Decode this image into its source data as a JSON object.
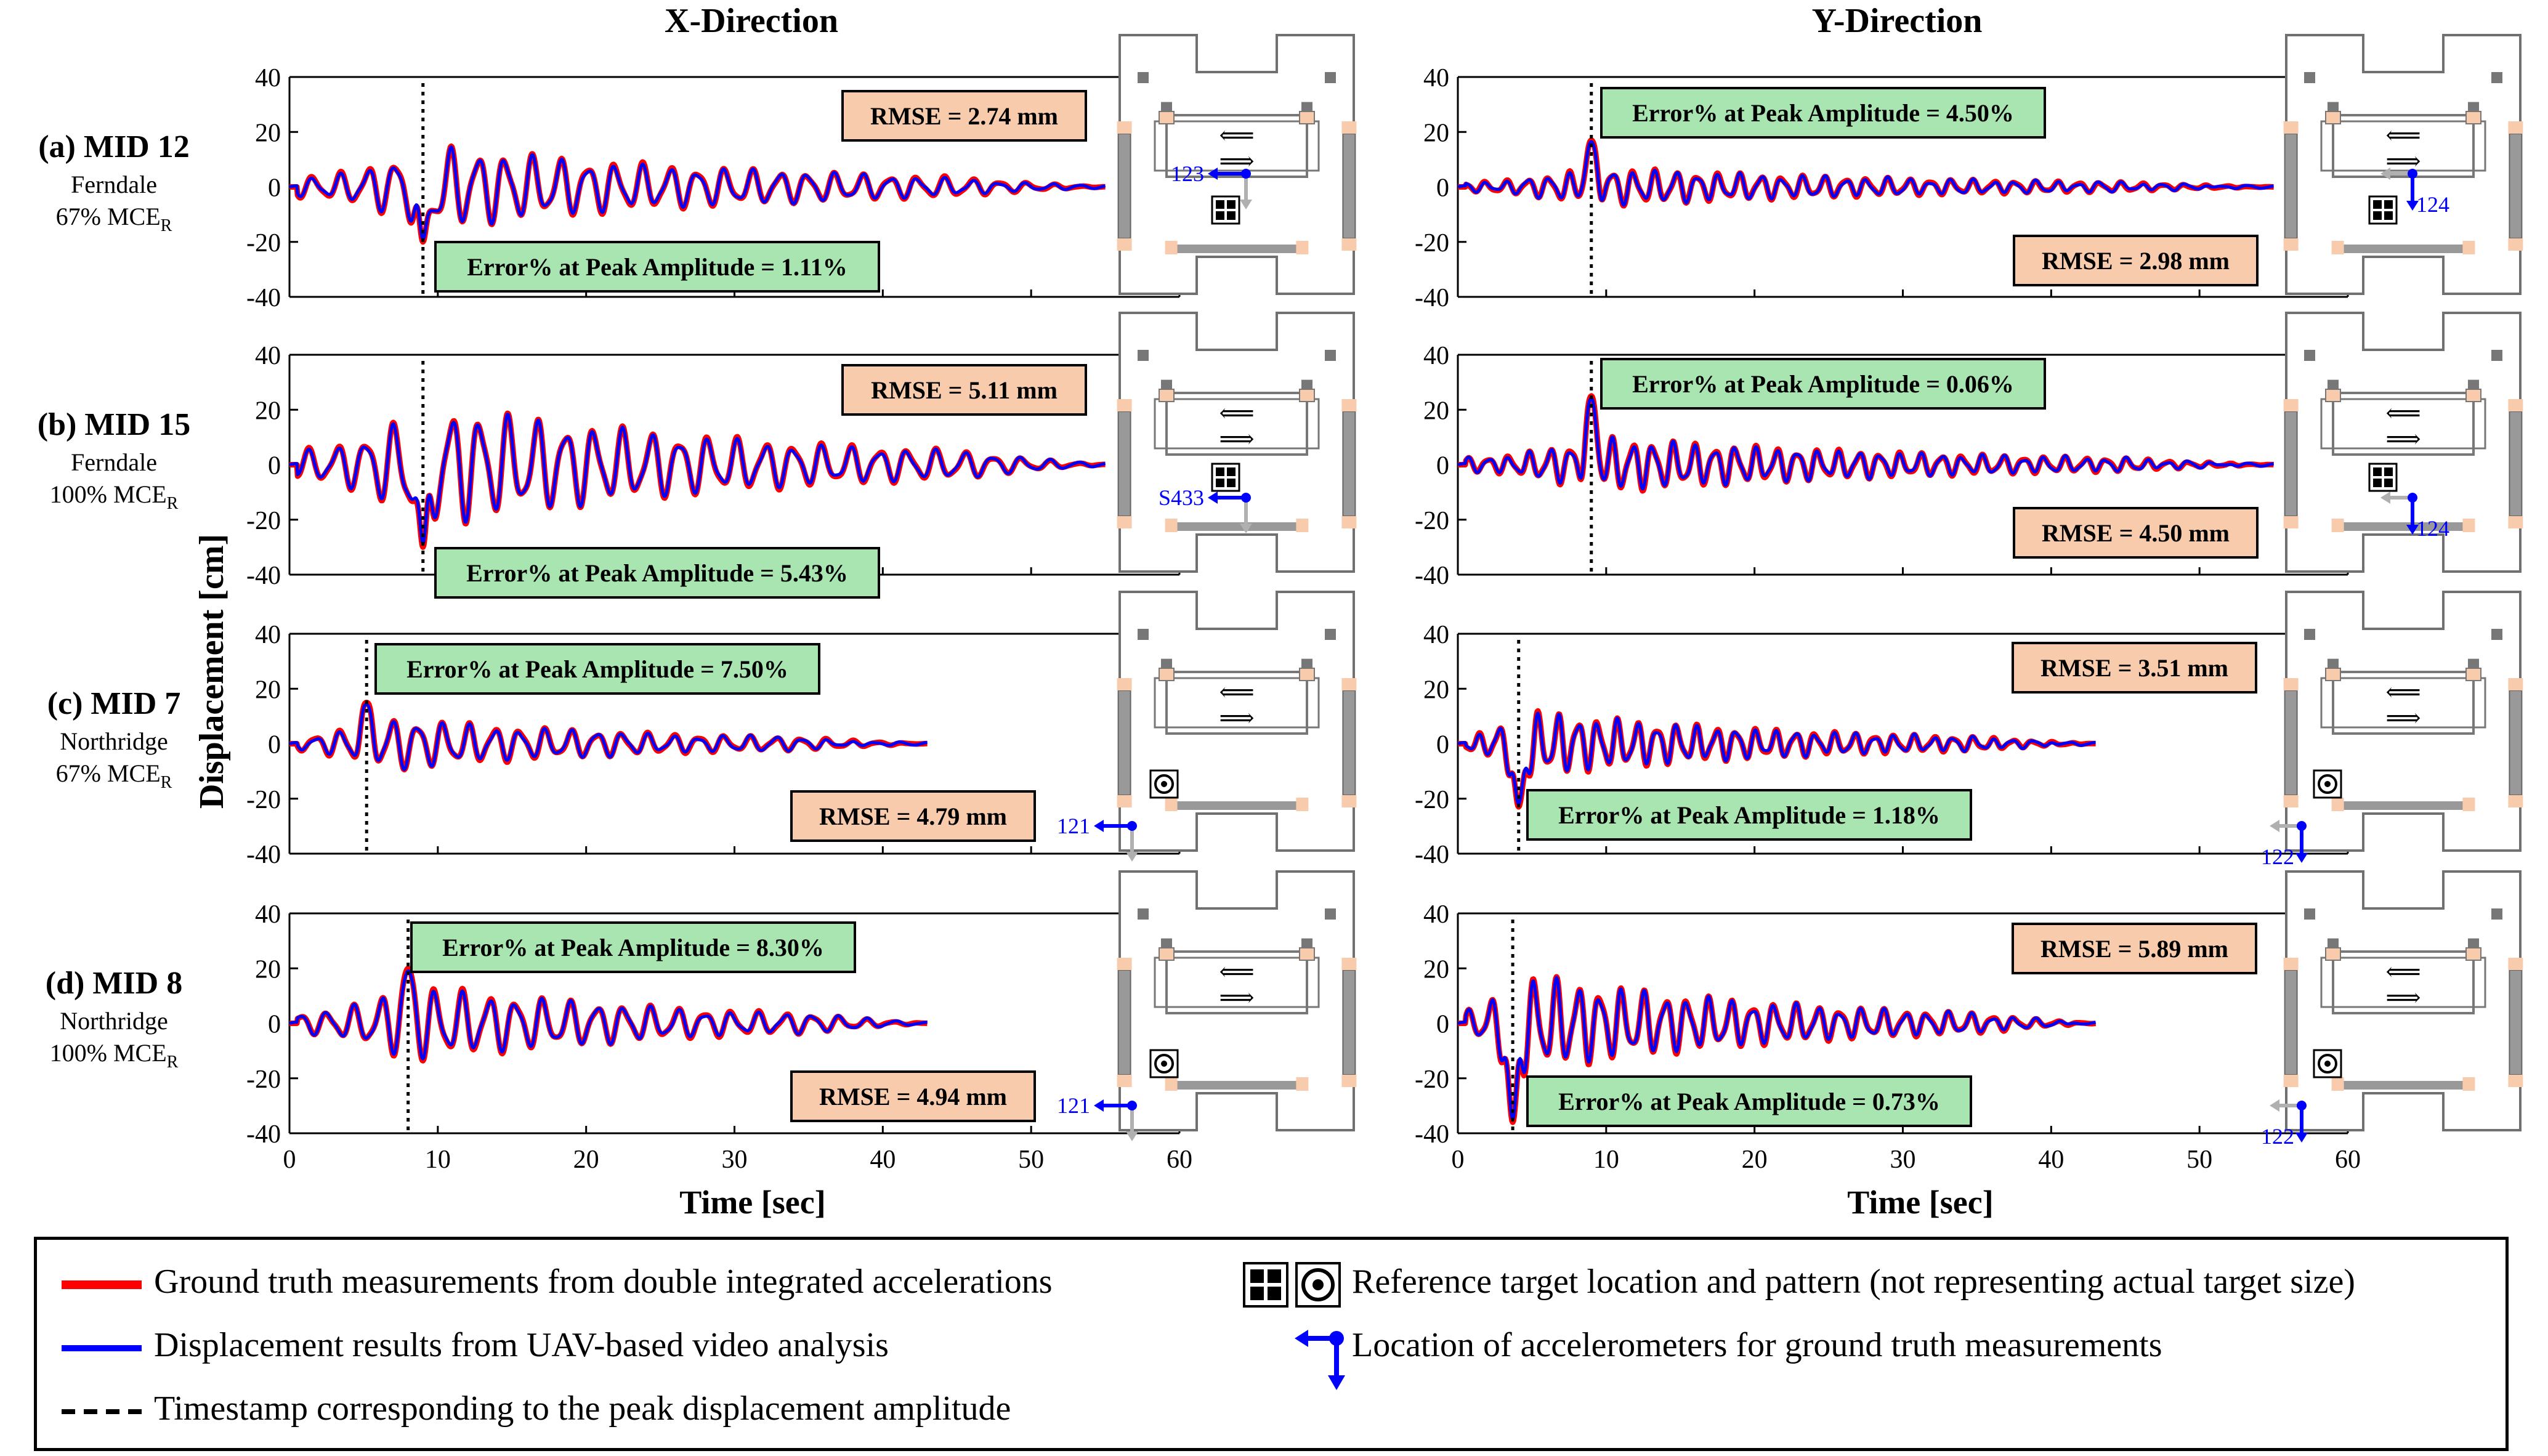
{
  "figure": {
    "column_titles": [
      "X-Direction",
      "Y-Direction"
    ],
    "y_axis_label": "Displacement [cm]",
    "x_axis_label": "Time [sec]",
    "rows": [
      {
        "label": "(a) MID 12",
        "record": "Ferndale",
        "intensity": "67% MCE",
        "intensity_sub": "R"
      },
      {
        "label": "(b) MID 15",
        "record": "Ferndale",
        "intensity": "100% MCE",
        "intensity_sub": "R"
      },
      {
        "label": "(c) MID 7",
        "record": "Northridge",
        "intensity": "67% MCE",
        "intensity_sub": "R"
      },
      {
        "label": "(d) MID 8",
        "record": "Northridge",
        "intensity": "100% MCE",
        "intensity_sub": "R"
      }
    ],
    "colors": {
      "ground_truth": "#ff0000",
      "uav": "#0000ff",
      "timestamp": "#000000",
      "rmse_box": "#f8cbad",
      "error_box": "#a9e5b0",
      "accel": "#0000ff",
      "accel_ref": "#b0b0b0",
      "plan_border": "#707070",
      "bearing": "#f8cbad"
    },
    "sensors": {
      "a_x": "123",
      "a_y": "124",
      "b_x": "S433",
      "b_y": "124",
      "c_x": "121",
      "c_y": "122",
      "d_x": "121",
      "d_y": "122"
    },
    "target_patterns": {
      "a": "grid",
      "b": "grid",
      "c": "bullseye",
      "d": "bullseye"
    },
    "plan_arrows": [
      "⟸",
      "⟹"
    ]
  },
  "chart_data": [
    {
      "type": "line",
      "panel": "a-x",
      "x_range": [
        0,
        60
      ],
      "ylim": [
        -40,
        40
      ],
      "xticks": [
        0,
        10,
        20,
        30,
        40,
        50,
        60
      ],
      "yticks": [
        40,
        20,
        0,
        -20,
        -40
      ],
      "duration": 55,
      "peak_time": 9,
      "peak_value": -20,
      "amp": 15,
      "freq": 0.54,
      "phase": 0,
      "series": [
        {
          "name": "Ground truth measurements from double integrated accelerations"
        },
        {
          "name": "Displacement results from UAV-based video analysis"
        }
      ],
      "rmse": "RMSE = 2.74 mm",
      "error": "Error% at Peak Amplitude = 1.11%"
    },
    {
      "type": "line",
      "panel": "a-y",
      "x_range": [
        0,
        60
      ],
      "ylim": [
        -40,
        40
      ],
      "xticks": [
        0,
        10,
        20,
        30,
        40,
        50,
        60
      ],
      "yticks": [
        40,
        20,
        0,
        -20,
        -40
      ],
      "duration": 55,
      "peak_time": 9,
      "peak_value": 17,
      "amp": 7,
      "freq": 0.7,
      "phase": 1,
      "rmse": "RMSE = 2.98 mm",
      "error": "Error% at Peak Amplitude = 4.50%"
    },
    {
      "type": "line",
      "panel": "b-x",
      "x_range": [
        0,
        60
      ],
      "ylim": [
        -40,
        40
      ],
      "xticks": [
        0,
        10,
        20,
        30,
        40,
        50,
        60
      ],
      "yticks": [
        40,
        20,
        0,
        -20,
        -40
      ],
      "duration": 55,
      "peak_time": 9,
      "peak_value": -30,
      "amp": 22,
      "freq": 0.52,
      "phase": 0.4,
      "rmse": "RMSE = 5.11 mm",
      "error": "Error% at Peak Amplitude = 5.43%"
    },
    {
      "type": "line",
      "panel": "b-y",
      "x_range": [
        0,
        60
      ],
      "ylim": [
        -40,
        40
      ],
      "xticks": [
        0,
        10,
        20,
        30,
        40,
        50,
        60
      ],
      "yticks": [
        40,
        20,
        0,
        -20,
        -40
      ],
      "duration": 55,
      "peak_time": 9,
      "peak_value": 25,
      "amp": 10,
      "freq": 0.72,
      "phase": 1.4,
      "rmse": "RMSE = 4.50 mm",
      "error": "Error% at Peak Amplitude = 0.06%"
    },
    {
      "type": "line",
      "panel": "c-x",
      "x_range": [
        0,
        60
      ],
      "ylim": [
        -40,
        40
      ],
      "xticks": [
        0,
        10,
        20,
        30,
        40,
        50,
        60
      ],
      "yticks": [
        40,
        20,
        0,
        -20,
        -40
      ],
      "duration": 43,
      "peak_time": 5.2,
      "peak_value": 15,
      "amp": 10,
      "freq": 0.58,
      "phase": 0.2,
      "rmse": "RMSE = 4.79 mm",
      "error": "Error% at Peak Amplitude = 7.50%"
    },
    {
      "type": "line",
      "panel": "c-y",
      "x_range": [
        0,
        60
      ],
      "ylim": [
        -40,
        40
      ],
      "xticks": [
        0,
        10,
        20,
        30,
        40,
        50,
        60
      ],
      "yticks": [
        40,
        20,
        0,
        -20,
        -40
      ],
      "duration": 43,
      "peak_time": 4.1,
      "peak_value": -23,
      "amp": 12,
      "freq": 0.75,
      "phase": 2,
      "rmse": "RMSE = 3.51 mm",
      "error": "Error% at Peak Amplitude = 1.18%"
    },
    {
      "type": "line",
      "panel": "d-x",
      "x_range": [
        0,
        60
      ],
      "ylim": [
        -40,
        40
      ],
      "xticks": [
        0,
        10,
        20,
        30,
        40,
        50,
        60
      ],
      "yticks": [
        40,
        20,
        0,
        -20,
        -40
      ],
      "duration": 43,
      "peak_time": 8,
      "peak_value": 20,
      "amp": 14,
      "freq": 0.55,
      "phase": 0.8,
      "rmse": "RMSE = 4.94 mm",
      "error": "Error% at Peak Amplitude = 8.30%"
    },
    {
      "type": "line",
      "panel": "d-y",
      "x_range": [
        0,
        60
      ],
      "ylim": [
        -40,
        40
      ],
      "xticks": [
        0,
        10,
        20,
        30,
        40,
        50,
        60
      ],
      "yticks": [
        40,
        20,
        0,
        -20,
        -40
      ],
      "duration": 43,
      "peak_time": 3.7,
      "peak_value": -36,
      "amp": 18,
      "freq": 0.68,
      "phase": 2.5,
      "rmse": "RMSE = 5.89 mm",
      "error": "Error% at Peak Amplitude = 0.73%"
    }
  ],
  "legend": {
    "ground_truth": "Ground truth measurements from double integrated accelerations",
    "uav": "Displacement results from UAV-based video analysis",
    "timestamp": "Timestamp corresponding to the peak displacement amplitude",
    "target": "Reference target location and pattern (not representing actual target size)",
    "accelerometer": "Location of accelerometers for ground truth measurements"
  }
}
